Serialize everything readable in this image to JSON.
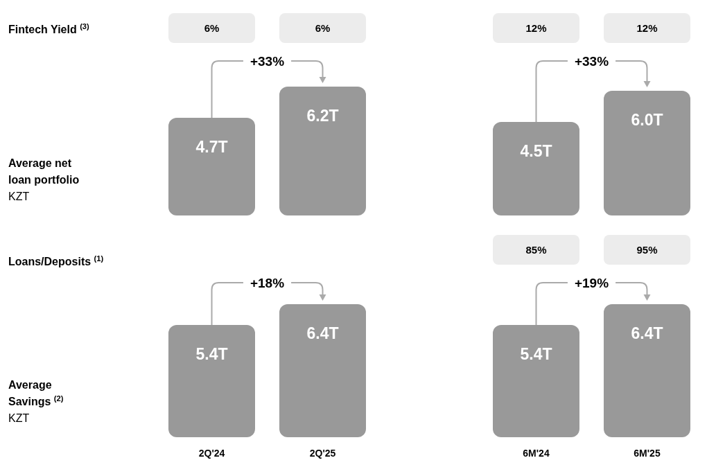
{
  "chart_data": [
    {
      "type": "bar",
      "ylabel": "Average net loan portfolio",
      "categories": [
        null,
        null
      ],
      "values": [
        4.7,
        6.2
      ],
      "value_labels": [
        "4.7T",
        "6.2T"
      ],
      "color": "#999999",
      "annotations": [
        "+33%",
        "6%",
        "6%",
        "Fintech Yield $^{(3)}$",
        "KZT"
      ]
    },
    {
      "type": "bar",
      "categories": [
        null,
        null
      ],
      "values": [
        4.5,
        6.0
      ],
      "value_labels": [
        "4.5T",
        "6.0T"
      ],
      "color": "#999999",
      "annotations": [
        "+33%",
        "12%",
        "12%"
      ]
    },
    {
      "type": "bar",
      "ylabel": "Average Savings $^{(2)}$",
      "categories": [
        "2Q'24",
        "2Q'25"
      ],
      "values": [
        5.4,
        6.4
      ],
      "value_labels": [
        "5.4T",
        "6.4T"
      ],
      "color": "#999999",
      "annotations": [
        "+18%",
        "Loans/Deposits $^{(1)}$",
        "KZT"
      ]
    },
    {
      "type": "bar",
      "categories": [
        "6M'24",
        "6M'25"
      ],
      "values": [
        5.4,
        6.4
      ],
      "value_labels": [
        "5.4T",
        "6.4T"
      ],
      "color": "#999999",
      "annotations": [
        "+19%",
        "85%",
        "95%"
      ]
    }
  ]
}
